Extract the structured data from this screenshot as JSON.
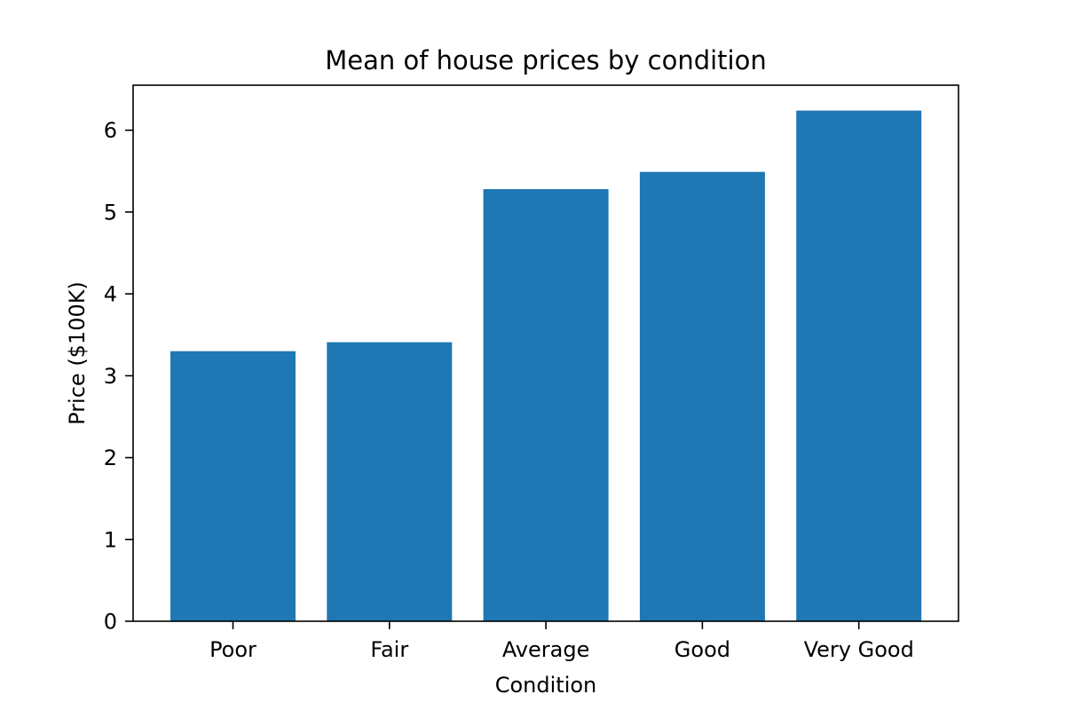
{
  "chart_data": {
    "type": "bar",
    "title": "Mean of house prices by condition",
    "xlabel": "Condition",
    "ylabel": "Price ($100K)",
    "categories": [
      "Poor",
      "Fair",
      "Average",
      "Good",
      "Very Good"
    ],
    "values": [
      3.3,
      3.41,
      5.28,
      5.49,
      6.24
    ],
    "ylim": [
      0,
      6.55
    ],
    "yticks": [
      0,
      1,
      2,
      3,
      4,
      5,
      6
    ],
    "ytick_labels": [
      "0",
      "1",
      "2",
      "3",
      "4",
      "5",
      "6"
    ],
    "grid": false,
    "legend": "none",
    "bar_color": "#1f77b4"
  }
}
